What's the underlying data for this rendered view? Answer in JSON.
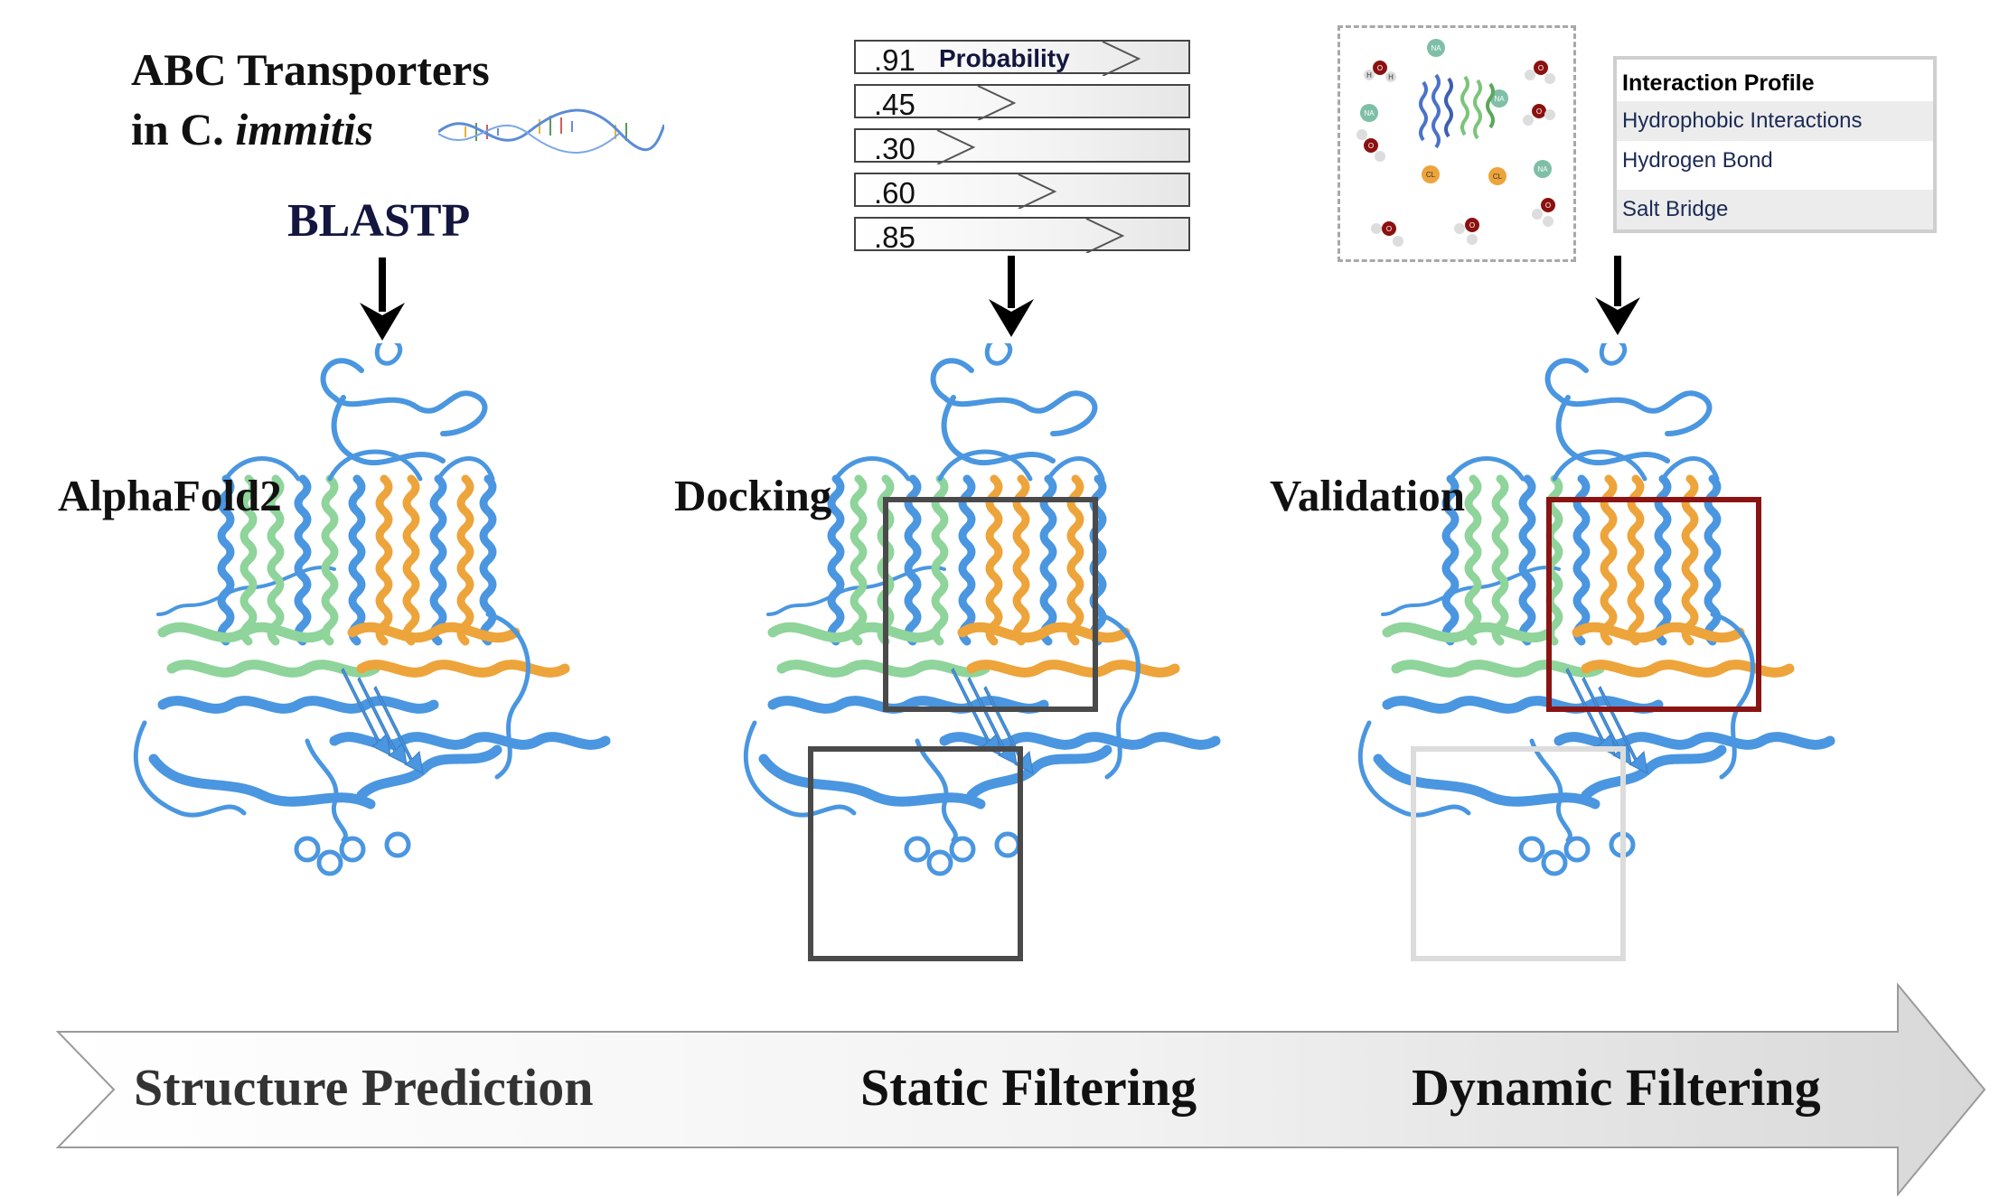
{
  "title": {
    "line1": "ABC Transporters",
    "line2_prefix": "in C. ",
    "line2_italic": "immitis"
  },
  "blastp_label": "BLASTP",
  "stages": {
    "prediction": {
      "method": "AlphaFold2",
      "name": "Structure Prediction"
    },
    "static": {
      "method": "Docking",
      "name": "Static Filtering"
    },
    "dynamic": {
      "method": "Validation",
      "name": "Dynamic Filtering"
    }
  },
  "probability": {
    "header": "Probability",
    "values": [
      ".91",
      ".45",
      ".30",
      ".60",
      ".85"
    ],
    "fractions": [
      0.91,
      0.45,
      0.3,
      0.6,
      0.85
    ]
  },
  "interaction_profile": {
    "header": "Interaction Profile",
    "rows": [
      "Hydrophobic Interactions",
      "Hydrogen Bond",
      "Salt Bridge"
    ]
  },
  "simulation_labels": {
    "sodium": "NA",
    "chloride": "CL",
    "oxygen": "O",
    "hydrogen": "H"
  },
  "colors": {
    "protein_blue": "#4a96e0",
    "helix_green": "#8fd49a",
    "helix_orange": "#eda43a",
    "box_dark": "#4a4a4a",
    "box_red": "#8a1414",
    "box_light": "#dcdcdc",
    "title_navy": "#14163f"
  },
  "icons": [
    "dna-strand-icon",
    "down-arrow-icon",
    "water-molecule-icon",
    "ion-icon",
    "protein-structure-icon"
  ]
}
